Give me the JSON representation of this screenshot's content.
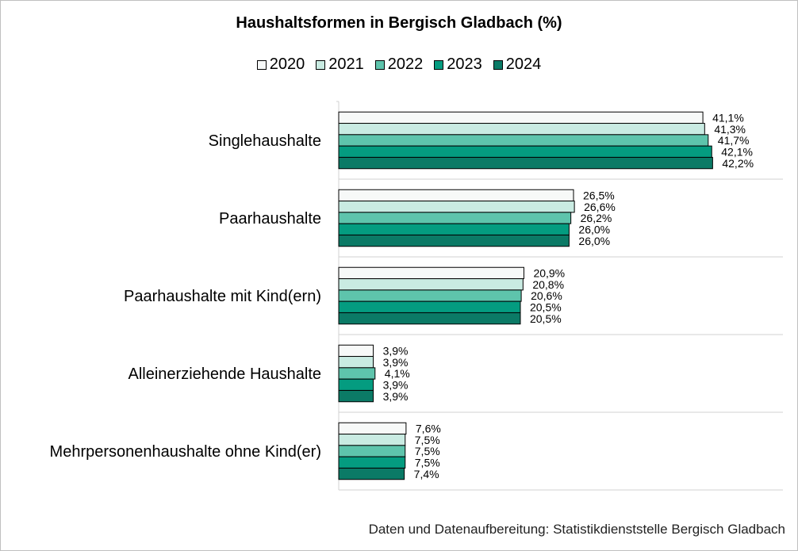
{
  "chart_data": {
    "type": "bar",
    "orientation": "horizontal",
    "title": "Haushaltsformen in Bergisch Gladbach (%)",
    "categories": [
      "Singlehaushalte",
      "Paarhaushalte",
      "Paarhaushalte mit Kind(ern)",
      "Alleinerziehende Haushalte",
      "Mehrpersonenhaushalte ohne Kind(er)"
    ],
    "series": [
      {
        "name": "2020",
        "color": "#f7f9f8",
        "values": [
          41.1,
          26.5,
          20.9,
          3.9,
          7.6
        ],
        "labels": [
          "41,1%",
          "26,5%",
          "20,9%",
          "3,9%",
          "7,6%"
        ]
      },
      {
        "name": "2021",
        "color": "#c9ebe2",
        "values": [
          41.3,
          26.6,
          20.8,
          3.9,
          7.5
        ],
        "labels": [
          "41,3%",
          "26,6%",
          "20,8%",
          "3,9%",
          "7,5%"
        ]
      },
      {
        "name": "2022",
        "color": "#5ec4ac",
        "values": [
          41.7,
          26.2,
          20.6,
          4.1,
          7.5
        ],
        "labels": [
          "41,7%",
          "26,2%",
          "20,6%",
          "4,1%",
          "7,5%"
        ]
      },
      {
        "name": "2023",
        "color": "#049c80",
        "values": [
          42.1,
          26.0,
          20.5,
          3.9,
          7.5
        ],
        "labels": [
          "42,1%",
          "26,0%",
          "20,5%",
          "3,9%",
          "7,5%"
        ]
      },
      {
        "name": "2024",
        "color": "#0b7a66",
        "values": [
          42.2,
          26.0,
          20.5,
          3.9,
          7.4
        ],
        "labels": [
          "42,2%",
          "26,0%",
          "20,5%",
          "3,9%",
          "7,4%"
        ]
      }
    ],
    "xlim": [
      0,
      50
    ],
    "grid": "horizontal separators between categories",
    "legend_position": "top"
  },
  "source_note": "Daten und Datenaufbereitung: Statistikdienststelle Bergisch Gladbach"
}
